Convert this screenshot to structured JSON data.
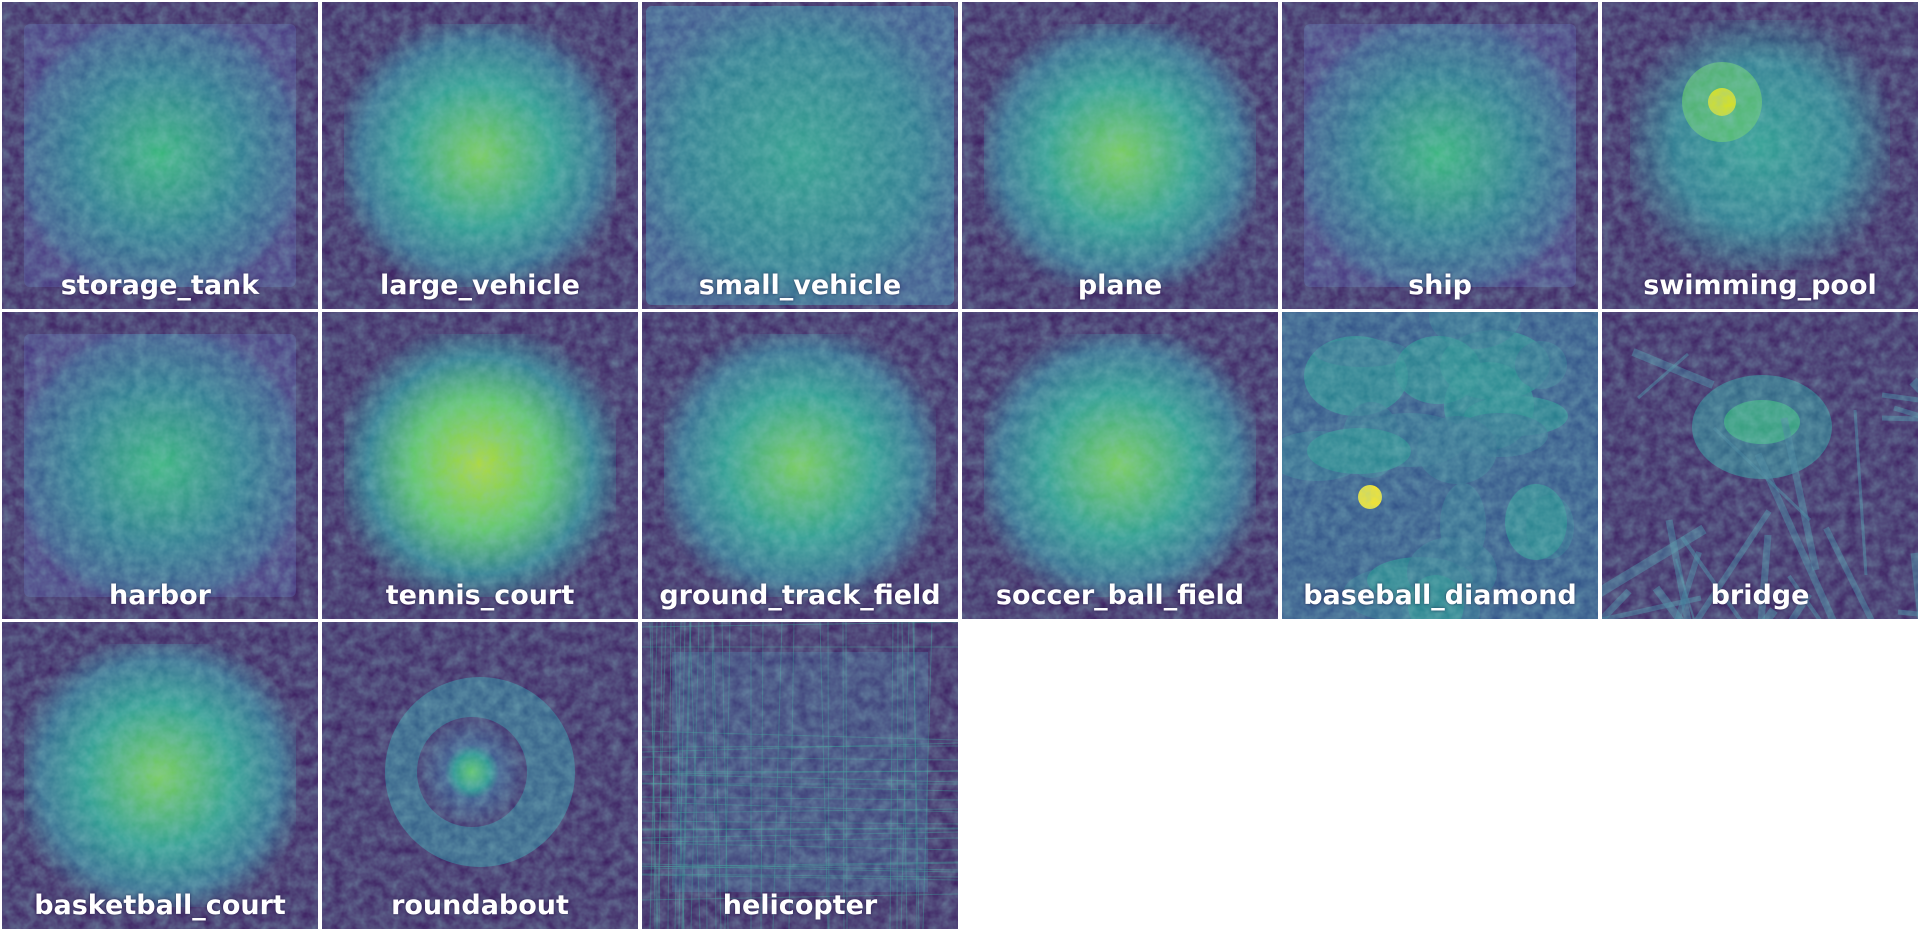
{
  "colors": {
    "background": "#ffffff",
    "low": "#440154",
    "mid": "#21918c",
    "high": "#fde725"
  },
  "tiles": [
    {
      "label": "storage_tank",
      "pattern": "noise-centered"
    },
    {
      "label": "large_vehicle",
      "pattern": "rect-bright"
    },
    {
      "label": "small_vehicle",
      "pattern": "noise-uniform"
    },
    {
      "label": "plane",
      "pattern": "rect-bright"
    },
    {
      "label": "ship",
      "pattern": "noise-centered"
    },
    {
      "label": "swimming_pool",
      "pattern": "hotspot"
    },
    {
      "label": "harbor",
      "pattern": "noise-centered"
    },
    {
      "label": "tennis_court",
      "pattern": "rect-very-bright"
    },
    {
      "label": "ground_track_field",
      "pattern": "rect-bright"
    },
    {
      "label": "soccer_ball_field",
      "pattern": "rect-bright"
    },
    {
      "label": "baseball_diamond",
      "pattern": "blobs"
    },
    {
      "label": "bridge",
      "pattern": "streaks"
    },
    {
      "label": "basketball_court",
      "pattern": "rect-bright"
    },
    {
      "label": "roundabout",
      "pattern": "circle"
    },
    {
      "label": "helicopter",
      "pattern": "lines"
    }
  ]
}
